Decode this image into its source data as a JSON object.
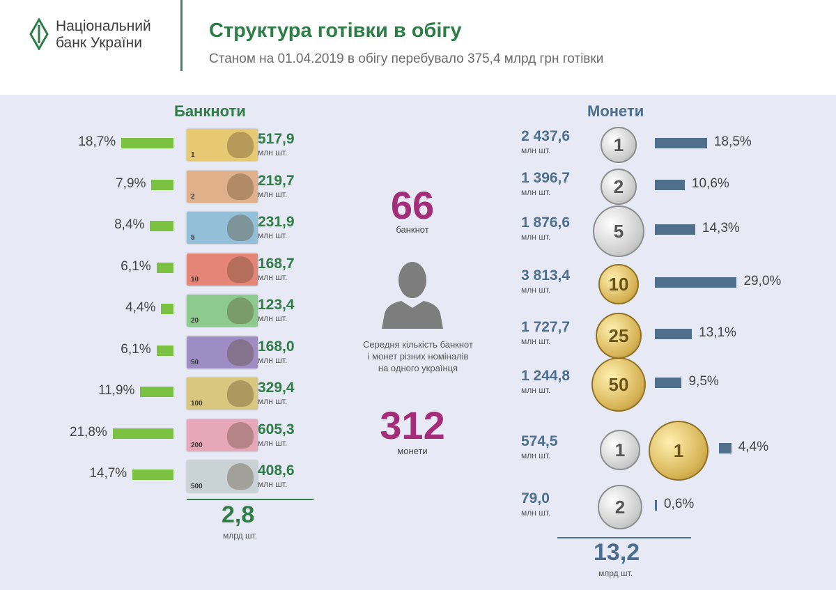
{
  "header": {
    "org_line1": "Національний",
    "org_line2": "банк України",
    "title": "Структура готівки в обігу",
    "subtitle": "Станом на 01.04.2019 в обігу перебувало 375,4 млрд  грн готівки"
  },
  "center": {
    "banknotes_count": "66",
    "banknotes_label": "банкнот",
    "description_line1": "Середня кількість банкнот",
    "description_line2": "і монет різних номіналів",
    "description_line3": "на одного українця",
    "coins_count": "312",
    "coins_label": "монети"
  },
  "totals": {
    "banknotes_value": "2,8",
    "banknotes_unit": "млрд шт.",
    "coins_value": "13,2",
    "coins_unit": "млрд шт."
  },
  "colors": {
    "green_bar": "#7cc242",
    "blue_bar": "#4f6f8d",
    "title_green": "#2e7d46",
    "accent_purple": "#a32d78"
  },
  "chart_data": [
    {
      "type": "bar",
      "title": "Банкноти",
      "unit": "млн шт.",
      "values": [
        517.9,
        219.7,
        231.9,
        168.7,
        123.4,
        168.0,
        329.4,
        605.3,
        408.6
      ],
      "value_labels": [
        "517,9",
        "219,7",
        "231,9",
        "168,7",
        "123,4",
        "168,0",
        "329,4",
        "605,3",
        "408,6"
      ],
      "percent": [
        18.7,
        7.9,
        8.4,
        6.1,
        4.4,
        6.1,
        11.9,
        21.8,
        14.7
      ],
      "percent_labels": [
        "18,7%",
        "7,9%",
        "8,4%",
        "6,1%",
        "4,4%",
        "6,1%",
        "11,9%",
        "21,8%",
        "14,7%"
      ],
      "denominations": [
        "1",
        "2",
        "5",
        "10",
        "20",
        "50",
        "100",
        "200",
        "500"
      ],
      "note_colors": [
        "#e7c873",
        "#e0b08a",
        "#93bfd9",
        "#e58577",
        "#8ccb8d",
        "#9d8dc4",
        "#d9c77f",
        "#e6a7b8",
        "#c9d3d6"
      ]
    },
    {
      "type": "bar",
      "title": "Монети",
      "unit": "млн шт.",
      "values": [
        2437.6,
        1396.7,
        1876.6,
        3813.4,
        1727.7,
        1244.8,
        574.5,
        79.0
      ],
      "value_labels": [
        "2 437,6",
        "1 396,7",
        "1 876,6",
        "3 813,4",
        "1 727,7",
        "1 244,8",
        "574,5",
        "79,0"
      ],
      "percent": [
        18.5,
        10.6,
        14.3,
        29.0,
        13.1,
        9.5,
        4.4,
        0.6
      ],
      "percent_labels": [
        "18,5%",
        "10,6%",
        "14,3%",
        "29,0%",
        "13,1%",
        "9,5%",
        "4,4%",
        "0,6%"
      ],
      "coin_labels": [
        "1",
        "2",
        "5",
        "10",
        "25",
        "50",
        "1",
        "2"
      ]
    }
  ]
}
